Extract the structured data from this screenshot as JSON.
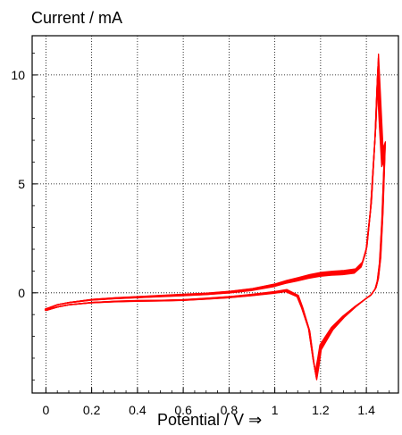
{
  "chart_data": {
    "type": "line",
    "title": "",
    "ylabel": "Current / mA",
    "xlabel": "Potential / V",
    "xlabel_arrow": "⇒",
    "xlim": [
      -0.06,
      1.54
    ],
    "ylim": [
      -4.6,
      11.8
    ],
    "xticks": [
      0,
      0.2,
      0.4,
      0.6,
      0.8,
      1,
      1.2,
      1.4
    ],
    "xtick_labels": [
      "0",
      "0.2",
      "0.4",
      "0.6",
      "0.8",
      "1",
      "1.2",
      "1.4"
    ],
    "yticks": [
      0,
      5,
      10
    ],
    "ytick_labels": [
      "0",
      "5",
      "10"
    ],
    "grid": true,
    "color": "#ff0000",
    "cycles": 8,
    "forward_sweep": {
      "x": [
        0.0,
        0.05,
        0.1,
        0.2,
        0.3,
        0.4,
        0.5,
        0.6,
        0.7,
        0.8,
        0.9,
        1.0,
        1.05,
        1.1,
        1.15,
        1.2,
        1.25,
        1.3,
        1.35,
        1.38,
        1.4,
        1.42,
        1.44,
        1.45,
        1.46,
        1.47
      ],
      "y": [
        -0.75,
        -0.55,
        -0.45,
        -0.32,
        -0.25,
        -0.2,
        -0.15,
        -0.1,
        -0.05,
        0.03,
        0.15,
        0.35,
        0.5,
        0.62,
        0.75,
        0.85,
        0.9,
        0.93,
        1.0,
        1.3,
        2.0,
        4.0,
        7.5,
        10.3,
        8.2,
        6.2
      ]
    },
    "reverse_sweep": {
      "x": [
        1.48,
        1.47,
        1.46,
        1.45,
        1.44,
        1.42,
        1.4,
        1.35,
        1.3,
        1.25,
        1.2,
        1.19,
        1.18,
        1.17,
        1.15,
        1.12,
        1.1,
        1.05,
        1.0,
        0.9,
        0.8,
        0.7,
        0.6,
        0.5,
        0.4,
        0.3,
        0.2,
        0.1,
        0.05,
        0.0
      ],
      "y": [
        6.5,
        3.5,
        1.5,
        0.6,
        0.2,
        -0.1,
        -0.25,
        -0.65,
        -1.1,
        -1.65,
        -2.5,
        -3.2,
        -3.8,
        -3.2,
        -1.7,
        -0.7,
        -0.15,
        0.1,
        0.02,
        -0.1,
        -0.2,
        -0.27,
        -0.33,
        -0.36,
        -0.37,
        -0.4,
        -0.45,
        -0.55,
        -0.65,
        -0.8
      ]
    }
  }
}
